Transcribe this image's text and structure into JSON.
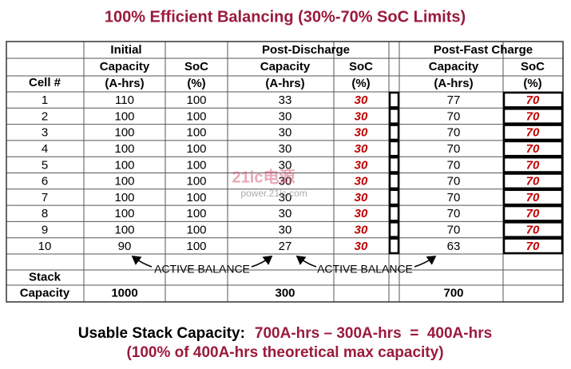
{
  "title": "100% Efficient Balancing (30%-70% SoC Limits)",
  "table": {
    "groups": [
      "Initial",
      "Post-Discharge",
      "Post-Fast Charge"
    ],
    "row_header": "Cell #",
    "column_labels": [
      "Capacity",
      "SoC",
      "Capacity",
      "SoC",
      "Capacity",
      "SoC"
    ],
    "column_units": [
      "(A-hrs)",
      "(%)",
      "(A-hrs)",
      "(%)",
      "(A-hrs)",
      "(%)"
    ],
    "rows": [
      [
        1,
        110,
        100,
        33,
        30,
        77,
        70
      ],
      [
        2,
        100,
        100,
        30,
        30,
        70,
        70
      ],
      [
        3,
        100,
        100,
        30,
        30,
        70,
        70
      ],
      [
        4,
        100,
        100,
        30,
        30,
        70,
        70
      ],
      [
        5,
        100,
        100,
        30,
        30,
        70,
        70
      ],
      [
        6,
        100,
        100,
        30,
        30,
        70,
        70
      ],
      [
        7,
        100,
        100,
        30,
        30,
        70,
        70
      ],
      [
        8,
        100,
        100,
        30,
        30,
        70,
        70
      ],
      [
        9,
        100,
        100,
        30,
        30,
        70,
        70
      ],
      [
        10,
        90,
        100,
        27,
        30,
        63,
        70
      ]
    ],
    "stack_label": [
      "Stack",
      "Capacity"
    ],
    "stack_totals": [
      1000,
      300,
      700
    ]
  },
  "annotations": [
    "ACTIVE BALANCE",
    "ACTIVE BALANCE"
  ],
  "footer": {
    "label": "Usable Stack Capacity:",
    "equation": "700A-hrs – 300A-hrs  =  400A-hrs",
    "note": "(100% of 400A-hrs theoretical max capacity)"
  },
  "watermark": {
    "logo": "21ic电源",
    "url": "power.21ic.com"
  }
}
